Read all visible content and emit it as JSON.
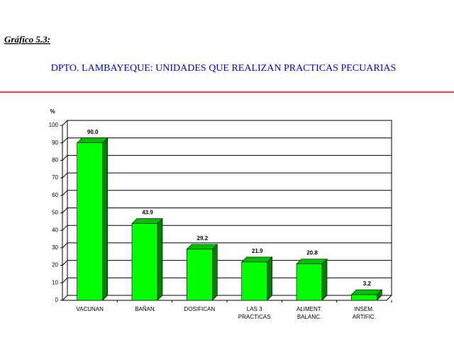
{
  "header": {
    "label": "Gráfico 5.3:",
    "title": "DPTO. LAMBAYEQUE: UNIDADES QUE REALIZAN PRACTICAS PECUARIAS"
  },
  "chart_data": {
    "type": "bar",
    "y_label": "%",
    "categories": [
      [
        "VACUNAN"
      ],
      [
        "BAÑAN"
      ],
      [
        "DOSIFICAN"
      ],
      [
        "LAS 3",
        "PRACTICAS"
      ],
      [
        "ALIMENT.",
        "BALANC."
      ],
      [
        "INSEM.",
        "ARTIFIC."
      ]
    ],
    "values": [
      90.0,
      43.9,
      29.2,
      21.9,
      20.8,
      3.2
    ],
    "value_labels": [
      "90.0",
      "43.9",
      "29.2",
      "21.9",
      "20.8",
      "3.2"
    ],
    "color": "#00ff00",
    "ylim": [
      0,
      100
    ],
    "yticks": [
      0,
      10,
      20,
      30,
      40,
      50,
      60,
      70,
      80,
      90,
      100
    ],
    "grid": true
  }
}
